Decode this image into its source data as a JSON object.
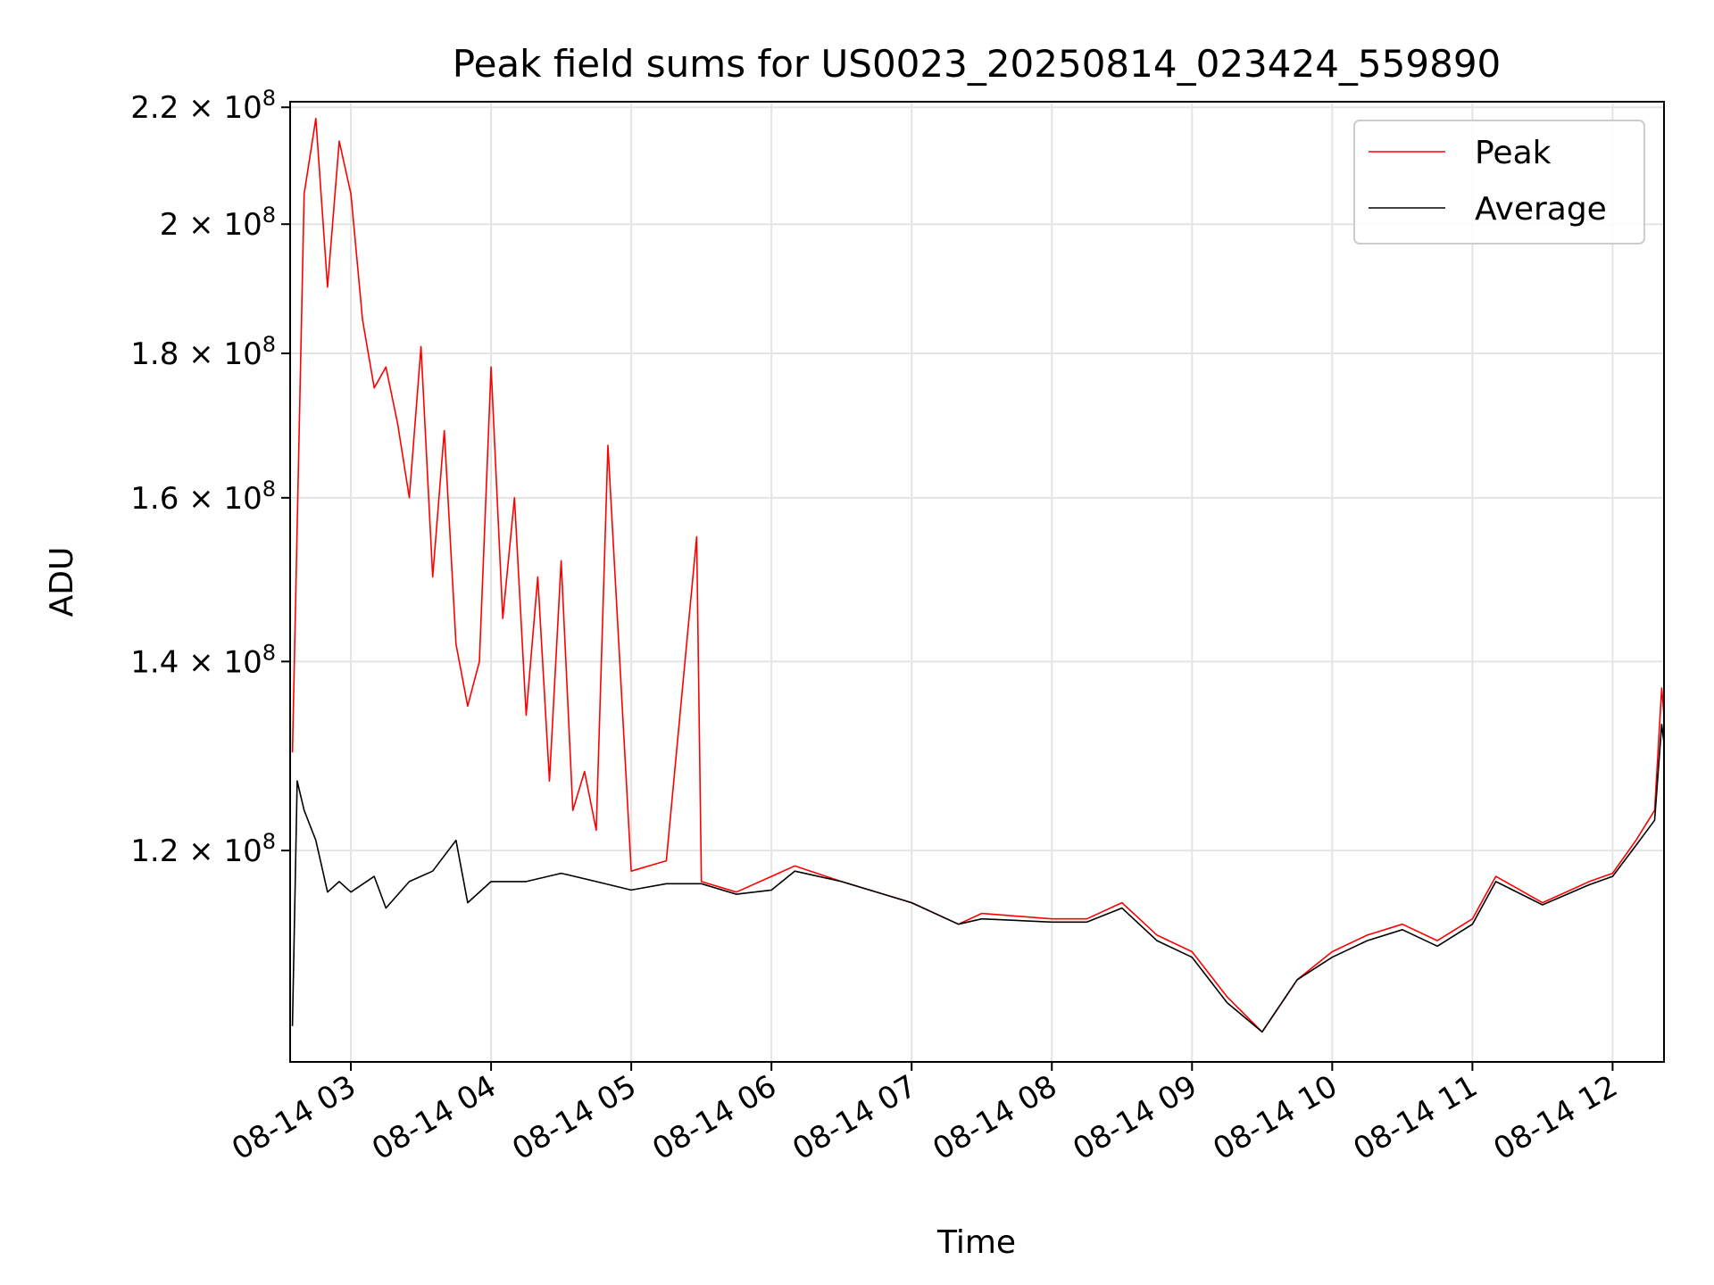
{
  "chart_data": {
    "type": "line",
    "title": "Peak field sums for US0023_20250814_023424_559890",
    "xlabel": "Time",
    "ylabel": "ADU",
    "x_ticks": [
      "08-14 03",
      "08-14 04",
      "08-14 05",
      "08-14 06",
      "08-14 07",
      "08-14 08",
      "08-14 09",
      "08-14 10",
      "08-14 11",
      "08-14 12"
    ],
    "y_ticks": [
      {
        "value": 120000000,
        "mantissa": "1.2",
        "exponent": "8"
      },
      {
        "value": 140000000,
        "mantissa": "1.4",
        "exponent": "8"
      },
      {
        "value": 160000000,
        "mantissa": "1.6",
        "exponent": "8"
      },
      {
        "value": 180000000,
        "mantissa": "1.8",
        "exponent": "8"
      },
      {
        "value": 200000000,
        "mantissa": "2",
        "exponent": "8"
      },
      {
        "value": 220000000,
        "mantissa": "2.2",
        "exponent": "8"
      }
    ],
    "y_scale": "log",
    "ylim": [
      101000000,
      221000000
    ],
    "xlim": [
      "2025-08-14 02:34",
      "2025-08-14 12:22"
    ],
    "grid": true,
    "legend_position": "top-right",
    "colors": {
      "peak": "#ff0000",
      "average": "#000000"
    },
    "series": [
      {
        "name": "Peak",
        "color": "#ff0000",
        "x": [
          "2025-08-14 02:35",
          "2025-08-14 02:40",
          "2025-08-14 02:45",
          "2025-08-14 02:50",
          "2025-08-14 02:55",
          "2025-08-14 03:00",
          "2025-08-14 03:05",
          "2025-08-14 03:10",
          "2025-08-14 03:15",
          "2025-08-14 03:20",
          "2025-08-14 03:25",
          "2025-08-14 03:30",
          "2025-08-14 03:35",
          "2025-08-14 03:40",
          "2025-08-14 03:45",
          "2025-08-14 03:50",
          "2025-08-14 03:55",
          "2025-08-14 04:00",
          "2025-08-14 04:05",
          "2025-08-14 04:10",
          "2025-08-14 04:15",
          "2025-08-14 04:20",
          "2025-08-14 04:25",
          "2025-08-14 04:30",
          "2025-08-14 04:35",
          "2025-08-14 04:40",
          "2025-08-14 04:45",
          "2025-08-14 04:50",
          "2025-08-14 05:00",
          "2025-08-14 05:15",
          "2025-08-14 05:28",
          "2025-08-14 05:30",
          "2025-08-14 05:45",
          "2025-08-14 06:00",
          "2025-08-14 06:10",
          "2025-08-14 06:30",
          "2025-08-14 07:00",
          "2025-08-14 07:20",
          "2025-08-14 07:30",
          "2025-08-14 08:00",
          "2025-08-14 08:15",
          "2025-08-14 08:30",
          "2025-08-14 08:45",
          "2025-08-14 09:00",
          "2025-08-14 09:15",
          "2025-08-14 09:30",
          "2025-08-14 09:45",
          "2025-08-14 10:00",
          "2025-08-14 10:15",
          "2025-08-14 10:30",
          "2025-08-14 10:45",
          "2025-08-14 11:00",
          "2025-08-14 11:10",
          "2025-08-14 11:30",
          "2025-08-14 11:50",
          "2025-08-14 12:00",
          "2025-08-14 12:10",
          "2025-08-14 12:18",
          "2025-08-14 12:21",
          "2025-08-14 12:22"
        ],
        "y": [
          130000000,
          205000000,
          218000000,
          190000000,
          214000000,
          205000000,
          185000000,
          175000000,
          178000000,
          170000000,
          160000000,
          181000000,
          150000000,
          169000000,
          142000000,
          135000000,
          140000000,
          178000000,
          145000000,
          160000000,
          134000000,
          150000000,
          127000000,
          152000000,
          124000000,
          128000000,
          122000000,
          167000000,
          118000000,
          119000000,
          155000000,
          117000000,
          116000000,
          117500000,
          118500000,
          117000000,
          115000000,
          113000000,
          114000000,
          113500000,
          113500000,
          115000000,
          112000000,
          110500000,
          106500000,
          103500000,
          108000000,
          110500000,
          112000000,
          113000000,
          111500000,
          113500000,
          117500000,
          115000000,
          117000000,
          117800000,
          121000000,
          124000000,
          137000000,
          134000000
        ]
      },
      {
        "name": "Average",
        "color": "#000000",
        "x": [
          "2025-08-14 02:35",
          "2025-08-14 02:37",
          "2025-08-14 02:40",
          "2025-08-14 02:45",
          "2025-08-14 02:50",
          "2025-08-14 02:55",
          "2025-08-14 03:00",
          "2025-08-14 03:10",
          "2025-08-14 03:15",
          "2025-08-14 03:25",
          "2025-08-14 03:35",
          "2025-08-14 03:45",
          "2025-08-14 03:50",
          "2025-08-14 04:00",
          "2025-08-14 04:15",
          "2025-08-14 04:30",
          "2025-08-14 04:45",
          "2025-08-14 05:00",
          "2025-08-14 05:15",
          "2025-08-14 05:30",
          "2025-08-14 05:45",
          "2025-08-14 06:00",
          "2025-08-14 06:10",
          "2025-08-14 06:30",
          "2025-08-14 07:00",
          "2025-08-14 07:20",
          "2025-08-14 07:30",
          "2025-08-14 08:00",
          "2025-08-14 08:15",
          "2025-08-14 08:30",
          "2025-08-14 08:45",
          "2025-08-14 09:00",
          "2025-08-14 09:15",
          "2025-08-14 09:30",
          "2025-08-14 09:45",
          "2025-08-14 10:00",
          "2025-08-14 10:15",
          "2025-08-14 10:30",
          "2025-08-14 10:45",
          "2025-08-14 11:00",
          "2025-08-14 11:10",
          "2025-08-14 11:30",
          "2025-08-14 11:50",
          "2025-08-14 12:00",
          "2025-08-14 12:10",
          "2025-08-14 12:18",
          "2025-08-14 12:21",
          "2025-08-14 12:22"
        ],
        "y": [
          104000000,
          127000000,
          124000000,
          121000000,
          116000000,
          117000000,
          116000000,
          117500000,
          114500000,
          117000000,
          118000000,
          121000000,
          115000000,
          117000000,
          117000000,
          117800000,
          117000000,
          116200000,
          116800000,
          116800000,
          115800000,
          116200000,
          118000000,
          117000000,
          115000000,
          113000000,
          113500000,
          113200000,
          113200000,
          114500000,
          111500000,
          110000000,
          106000000,
          103500000,
          108000000,
          110000000,
          111500000,
          112500000,
          111000000,
          113000000,
          117000000,
          114800000,
          116700000,
          117500000,
          120500000,
          123000000,
          133000000,
          131000000
        ]
      }
    ]
  }
}
